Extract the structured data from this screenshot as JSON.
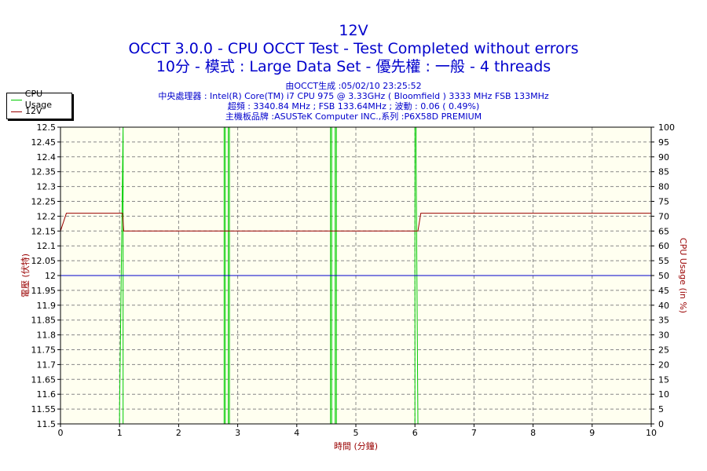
{
  "chart_data": {
    "type": "line",
    "title": "12V",
    "subtitles": [
      "OCCT 3.0.0 - CPU OCCT Test - Test Completed without errors",
      "10分 - 模式 : Large Data Set - 優先權 : 一般 - 4 threads"
    ],
    "info_lines": [
      "由OCCT生成 :05/02/10 23:25:52",
      "中央處理器 : Intel(R) Core(TM) i7 CPU 975 @ 3.33GHz ( Bloomfield ) 3333 MHz FSB 133MHz",
      "超頻 : 3340.84 MHz ; FSB 133.64MHz ; 波動 : 0.06 ( 0.49%)",
      "主機板品牌 :ASUSTeK Computer INC.,系列 :P6X58D PREMIUM"
    ],
    "xlabel": "時間 (分鐘)",
    "ylabel_left": "電壓 (伏特)",
    "ylabel_right": "CPU Usage (in %)",
    "xlim": [
      0,
      10
    ],
    "ylim_left": [
      11.5,
      12.5
    ],
    "ylim_right": [
      0,
      100
    ],
    "x_ticks": [
      "0",
      "1",
      "2",
      "3",
      "4",
      "5",
      "6",
      "7",
      "8",
      "9",
      "10"
    ],
    "y_ticks_left": [
      "12.5",
      "12.45",
      "12.4",
      "12.35",
      "12.3",
      "12.25",
      "12.2",
      "12.15",
      "12.1",
      "12.05",
      "12",
      "11.95",
      "11.9",
      "11.85",
      "11.8",
      "11.75",
      "11.7",
      "11.65",
      "11.6",
      "11.55",
      "11.5"
    ],
    "y_ticks_right": [
      "100",
      "95",
      "90",
      "85",
      "80",
      "75",
      "70",
      "65",
      "60",
      "55",
      "50",
      "45",
      "40",
      "35",
      "30",
      "25",
      "20",
      "15",
      "10",
      "5",
      "0"
    ],
    "grid": true,
    "legend_position": "top-left",
    "colors": {
      "cpu_usage": "#00cc00",
      "voltage": "#990000",
      "reference": "#0000cc",
      "plot_bg": "#fffff0",
      "text": "#0000cc",
      "axis_label_left": "#990000",
      "axis_label_right": "#990000",
      "xlabel": "#990000"
    },
    "series": [
      {
        "name": "CPU Usage",
        "axis": "right",
        "points": [
          [
            0,
            0
          ],
          [
            1.0,
            0
          ],
          [
            1.0,
            5
          ],
          [
            1.06,
            100
          ],
          [
            1.06,
            100
          ],
          [
            1.06,
            0
          ],
          [
            2.77,
            0
          ],
          [
            2.77,
            100
          ],
          [
            2.79,
            100
          ],
          [
            2.79,
            0
          ],
          [
            2.84,
            0
          ],
          [
            2.84,
            100
          ],
          [
            2.86,
            100
          ],
          [
            2.86,
            0
          ],
          [
            4.57,
            0
          ],
          [
            4.57,
            100
          ],
          [
            4.59,
            100
          ],
          [
            4.59,
            0
          ],
          [
            4.65,
            0
          ],
          [
            4.65,
            100
          ],
          [
            4.67,
            100
          ],
          [
            4.67,
            0
          ],
          [
            6.0,
            0
          ],
          [
            6.0,
            100
          ],
          [
            6.02,
            100
          ],
          [
            6.02,
            88
          ],
          [
            6.02,
            90
          ],
          [
            6.05,
            0
          ],
          [
            10,
            0
          ]
        ]
      },
      {
        "name": "12V",
        "axis": "left",
        "points": [
          [
            0.0,
            12.15
          ],
          [
            0.1,
            12.21
          ],
          [
            1.05,
            12.21
          ],
          [
            1.07,
            12.15
          ],
          [
            6.05,
            12.15
          ],
          [
            6.1,
            12.21
          ],
          [
            10,
            12.21
          ]
        ]
      },
      {
        "axis": "left",
        "role": "reference",
        "points": [
          [
            0,
            12.0
          ],
          [
            10,
            12.0
          ]
        ]
      }
    ]
  }
}
